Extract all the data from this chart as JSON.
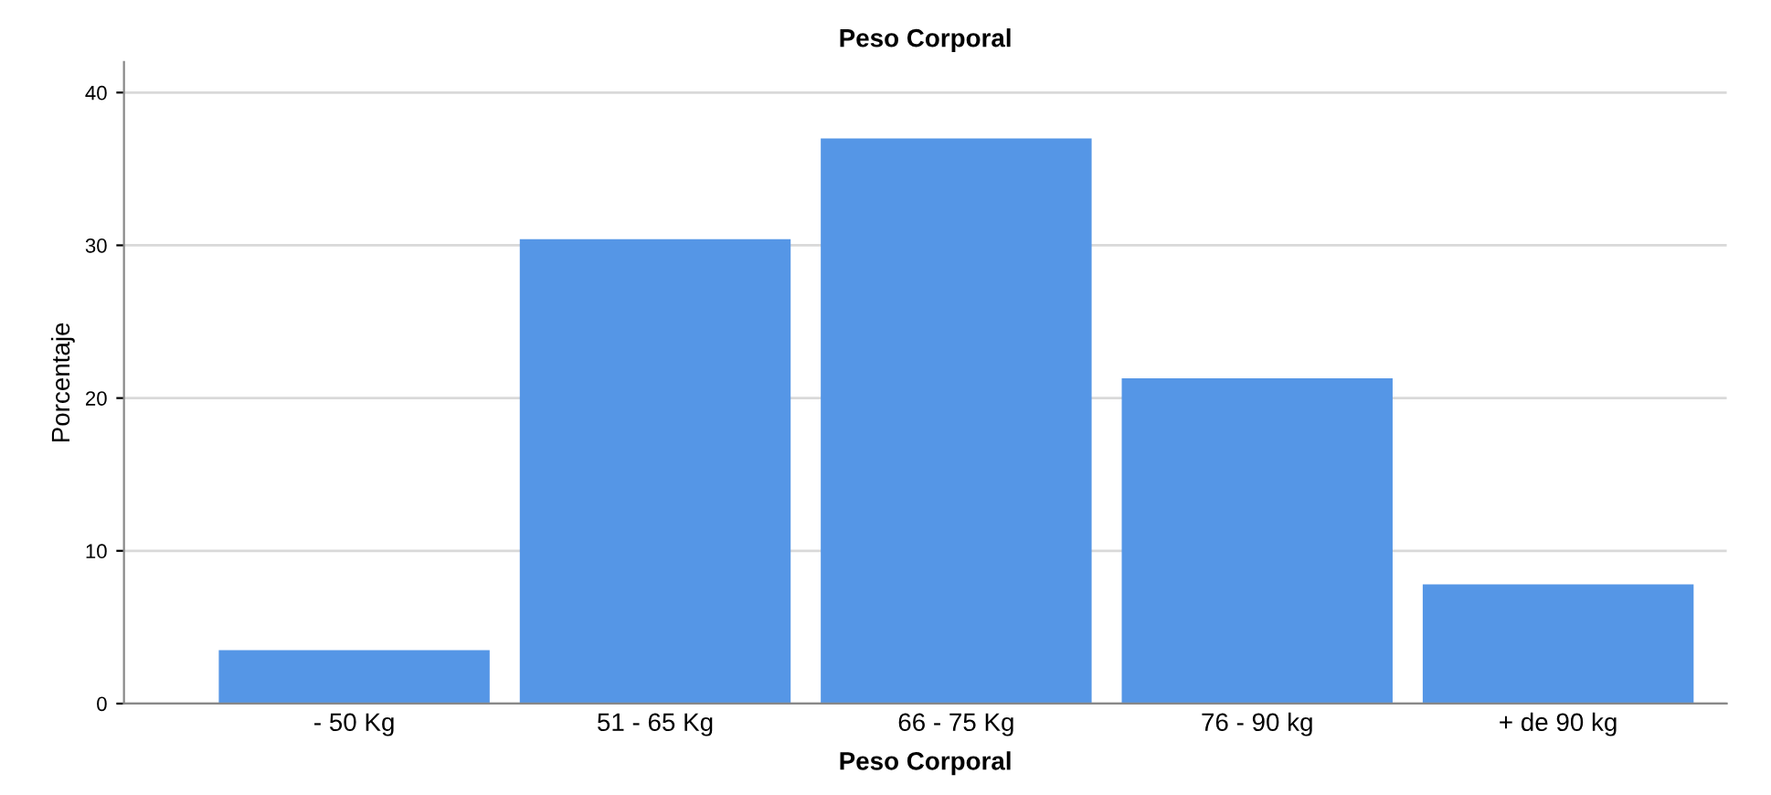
{
  "chart_data": {
    "type": "bar",
    "title": "Peso Corporal",
    "xlabel": "Peso Corporal",
    "ylabel": "Porcentaje",
    "categories": [
      "- 50 Kg",
      "51 - 65 Kg",
      "66 - 75 Kg",
      "76 - 90 kg",
      "+ de 90 kg"
    ],
    "values": [
      3.5,
      30.4,
      37.0,
      21.3,
      7.8
    ],
    "color": "#5596e6",
    "ylim": [
      0,
      42
    ],
    "yticks": [
      0,
      10,
      20,
      30,
      40
    ],
    "grid": "y",
    "legend": false
  }
}
